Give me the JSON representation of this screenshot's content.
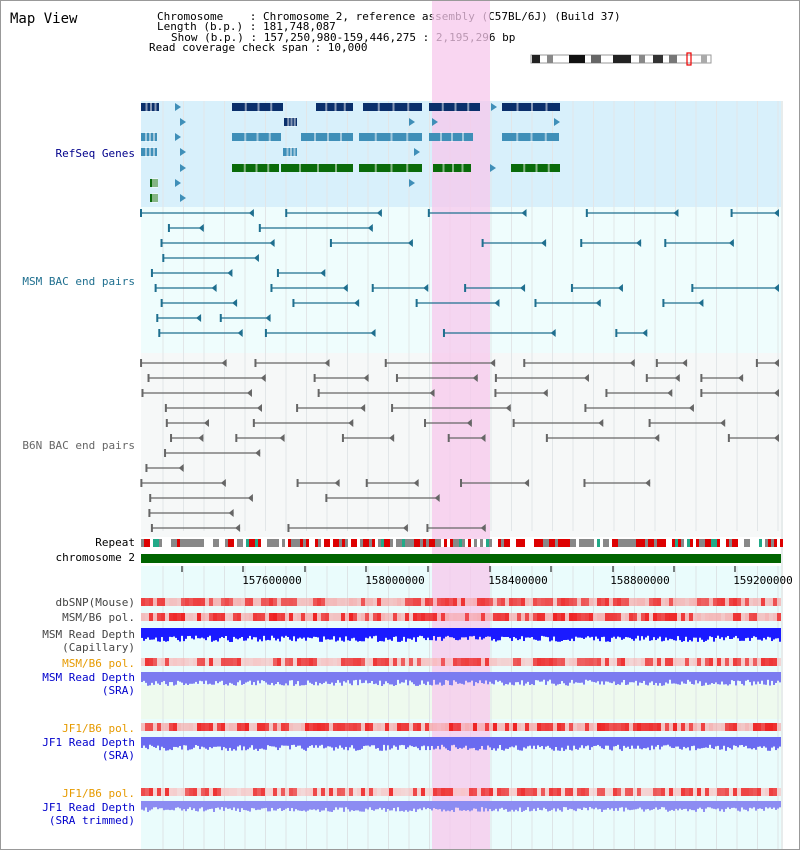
{
  "header": {
    "title": "Map View",
    "chromosome_line": "Chromosome    : Chromosome 2, reference assembly (C57BL/6J) (Build 37)",
    "length_line": "Length (b.p.) : 181,748,087",
    "show_line": "Show (b.p.) : 157,250,980-159,446,275 : 2,195,296 bp",
    "coverage_line": "Read coverage check span : 10,000"
  },
  "tracks": {
    "refseq": "RefSeq Genes",
    "msm_bac": "MSM BAC end pairs",
    "b6n_bac": "B6N BAC end pairs",
    "repeat": "Repeat",
    "chromosome": "chromosome 2",
    "dbsnp": "dbSNP(Mouse)",
    "msm_b6_pol_1": "MSM/B6 pol.",
    "msm_read_depth_cap_1": "MSM Read Depth",
    "msm_read_depth_cap_2": "(Capillary)",
    "msm_b6_pol_2": "MSM/B6 pol.",
    "msm_read_depth_sra_1": "MSM Read Depth",
    "msm_read_depth_sra_2": "(SRA)",
    "jf1_b6_pol_1": "JF1/B6 pol.",
    "jf1_read_depth_sra_1": "JF1 Read Depth",
    "jf1_read_depth_sra_2": "(SRA)",
    "jf1_b6_pol_2": "JF1/B6 pol.",
    "jf1_read_depth_trim_1": "JF1 Read Depth",
    "jf1_read_depth_trim_2": "(SRA trimmed)"
  },
  "axis": {
    "ticks": [
      "157600000",
      "158000000",
      "158400000",
      "158800000",
      "159200000"
    ]
  },
  "colors": {
    "refseq_dark": "#0a2f6b",
    "refseq_mid": "#3f8fb8",
    "refseq_green": "#0a6b0a",
    "msm_bac": "#1f6f8f",
    "b6n_bac": "#666666",
    "highlight": "#f7c8ec",
    "chromosome_bar": "#006400"
  }
}
